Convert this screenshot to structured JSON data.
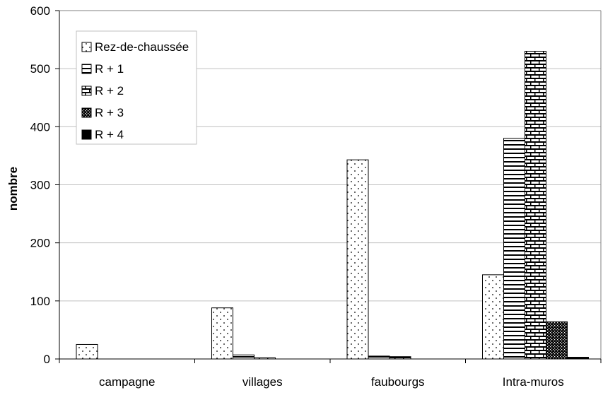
{
  "chart_data": {
    "type": "bar",
    "title": "",
    "xlabel": "",
    "ylabel": "nombre",
    "ylim": [
      0,
      600
    ],
    "yticks": [
      0,
      100,
      200,
      300,
      400,
      500,
      600
    ],
    "grid": true,
    "legend_position": "top-left",
    "categories": [
      "campagne",
      "villages",
      "faubourgs",
      "Intra-muros"
    ],
    "series": [
      {
        "name": "Rez-de-chaussée",
        "pattern": "dots",
        "values": [
          25,
          88,
          343,
          145
        ]
      },
      {
        "name": "R + 1",
        "pattern": "hlines",
        "values": [
          0,
          7,
          5,
          380
        ]
      },
      {
        "name": "R + 2",
        "pattern": "bricks",
        "values": [
          0,
          2,
          4,
          530
        ]
      },
      {
        "name": "R + 3",
        "pattern": "dense",
        "values": [
          0,
          0,
          0,
          64
        ]
      },
      {
        "name": "R + 4",
        "pattern": "solid",
        "values": [
          0,
          0,
          0,
          3
        ]
      }
    ],
    "colors": {
      "axis": "#000000",
      "grid": "#c0c0c0",
      "bar_stroke": "#000000",
      "background": "#ffffff"
    }
  }
}
